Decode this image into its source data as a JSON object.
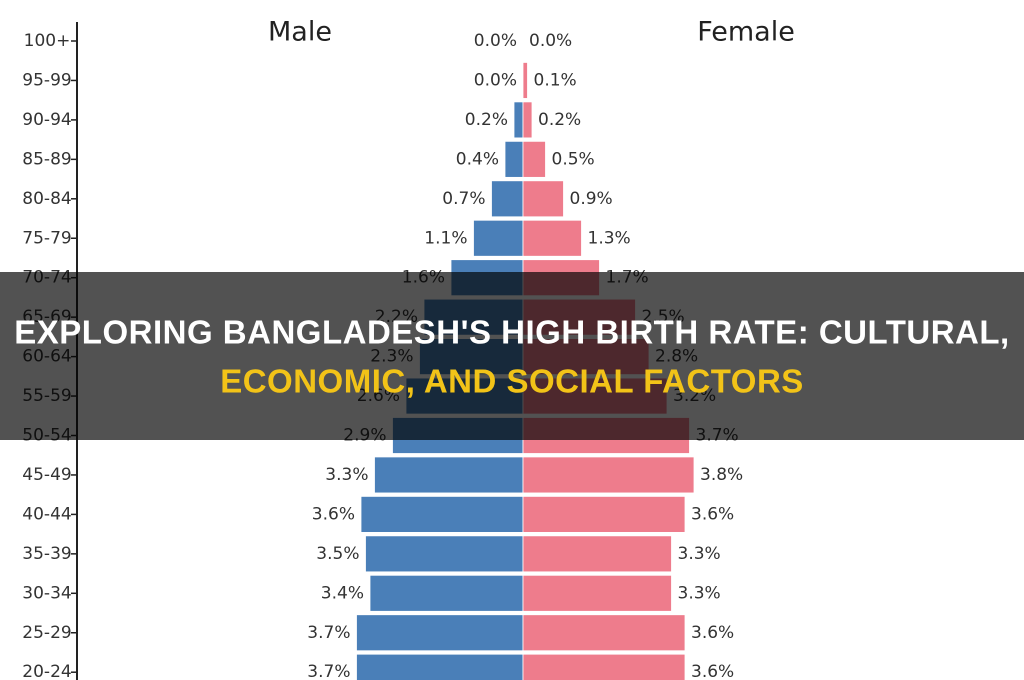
{
  "chart_data": {
    "type": "pyramid",
    "categories": [
      "100+",
      "95-99",
      "90-94",
      "85-89",
      "80-84",
      "75-79",
      "70-74",
      "65-69",
      "60-64",
      "55-59",
      "50-54",
      "45-49",
      "40-44",
      "35-39",
      "30-34",
      "25-29",
      "20-24"
    ],
    "series": [
      {
        "name": "Male",
        "color": "#4a7fb8",
        "values": [
          0.0,
          0.0,
          0.2,
          0.4,
          0.7,
          1.1,
          1.6,
          2.2,
          2.3,
          2.6,
          2.9,
          3.3,
          3.6,
          3.5,
          3.4,
          3.7,
          3.7
        ],
        "value_labels": [
          "0.0%",
          "0.0%",
          "0.2%",
          "0.4%",
          "0.7%",
          "1.1%",
          "1.6%",
          "2.2%",
          "2.3%",
          "2.6%",
          "2.9%",
          "3.3%",
          "3.6%",
          "3.5%",
          "3.4%",
          "3.7%",
          "3.7%"
        ]
      },
      {
        "name": "Female",
        "color": "#ee7c8c",
        "values": [
          0.0,
          0.1,
          0.2,
          0.5,
          0.9,
          1.3,
          1.7,
          2.5,
          2.8,
          3.2,
          3.7,
          3.8,
          3.6,
          3.3,
          3.3,
          3.6,
          3.6
        ],
        "value_labels": [
          "0.0%",
          "0.1%",
          "0.2%",
          "0.5%",
          "0.9%",
          "1.3%",
          "1.7%",
          "2.5%",
          "2.8%",
          "3.2%",
          "3.7%",
          "3.8%",
          "3.6%",
          "3.3%",
          "3.3%",
          "3.6%",
          "3.6%"
        ]
      }
    ]
  },
  "overlay": {
    "lines": [
      "EXPLORING BANGLADESH'S HIGH BIRTH RATE: CULTURAL,",
      "ECONOMIC, AND SOCIAL FACTORS"
    ]
  }
}
